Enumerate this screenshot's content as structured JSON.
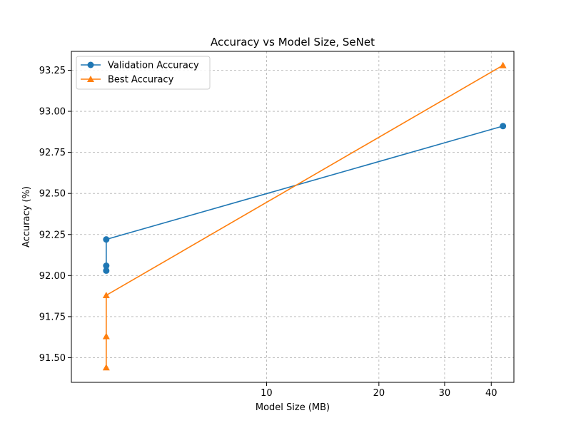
{
  "chart_data": {
    "type": "line",
    "title": "Accuracy vs Model Size, SeNet",
    "xlabel": "Model Size (MB)",
    "ylabel": "Accuracy (%)",
    "xscale": "log",
    "xlim": [
      3.0,
      46.0
    ],
    "ylim": [
      91.35,
      93.365
    ],
    "xticks": [
      10,
      20,
      30,
      40
    ],
    "xtick_labels": [
      "10",
      "20",
      "30",
      "40"
    ],
    "yticks": [
      91.5,
      91.75,
      92.0,
      92.25,
      92.5,
      92.75,
      93.0,
      93.25
    ],
    "ytick_labels": [
      "91.50",
      "91.75",
      "92.00",
      "92.25",
      "92.50",
      "92.75",
      "93.00",
      "93.25"
    ],
    "grid": true,
    "legend_position": "top-left",
    "series": [
      {
        "name": "Validation Accuracy",
        "color": "#1f77b4",
        "marker": "circle",
        "x": [
          3.72,
          3.72,
          3.72,
          43.0
        ],
        "y": [
          92.03,
          92.06,
          92.22,
          92.91
        ]
      },
      {
        "name": "Best Accuracy",
        "color": "#ff7f0e",
        "marker": "triangle",
        "x": [
          3.72,
          3.72,
          3.72,
          43.0
        ],
        "y": [
          91.44,
          91.63,
          91.88,
          93.28
        ]
      }
    ]
  }
}
